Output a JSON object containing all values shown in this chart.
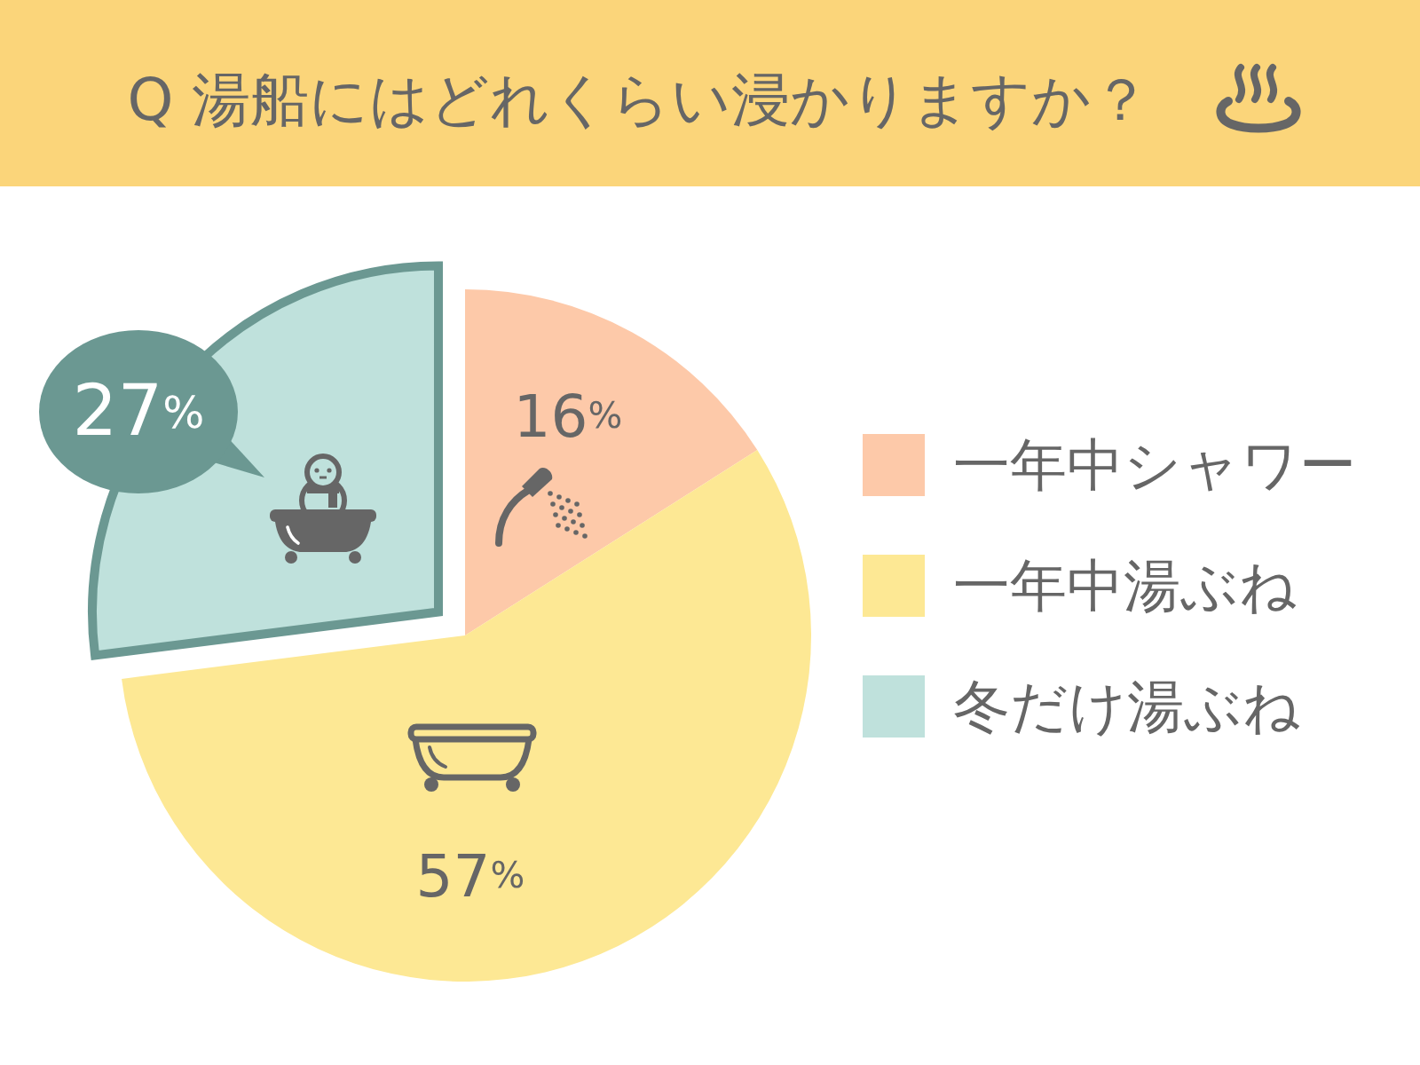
{
  "chart_data": {
    "type": "pie",
    "title": "Q 湯船にはどれくらい浸かりますか？",
    "categories": [
      "一年中シャワー",
      "一年中湯ぶね",
      "冬だけ湯ぶね"
    ],
    "values": [
      16,
      57,
      27
    ],
    "colors": [
      "#fdc9a9",
      "#fde894",
      "#bfe1dc"
    ],
    "value_labels": [
      "16%",
      "57%",
      "27%"
    ],
    "legend": "right"
  }
}
